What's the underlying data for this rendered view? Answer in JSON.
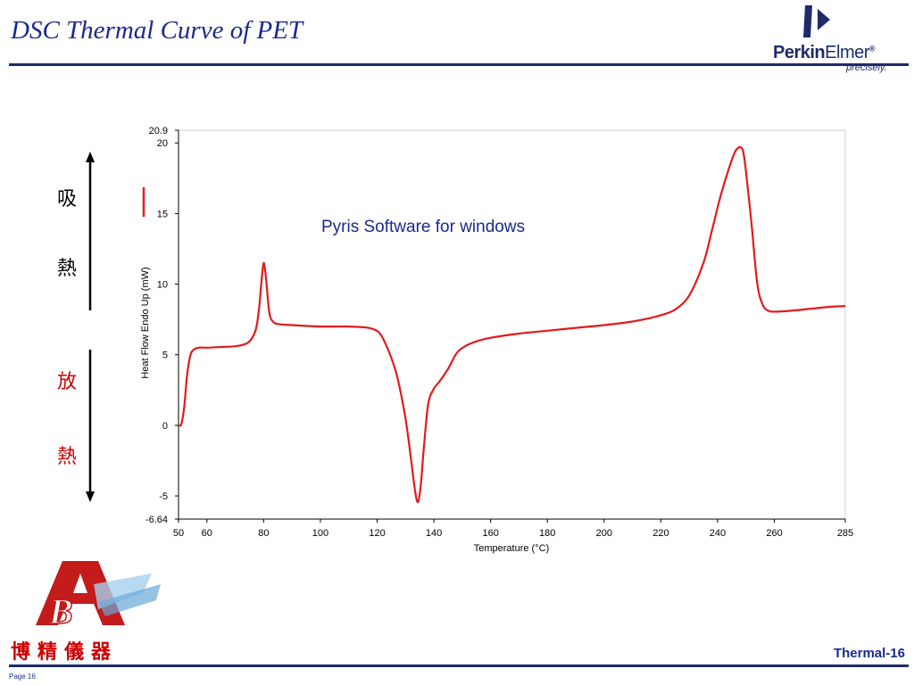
{
  "slide": {
    "title": "DSC Thermal Curve of PET",
    "slide_number": "Thermal-16",
    "page_label": "Page 16",
    "title_color": "#1a2a8c",
    "rule_color": "#1d2b6b"
  },
  "logos": {
    "perkinelmer": {
      "word_bold": "Perkin",
      "word_regular": "Elmer",
      "reg": "®",
      "tagline": "precisely."
    },
    "company_name": "博精儀器"
  },
  "side_labels": {
    "endothermic": [
      "吸",
      "熱"
    ],
    "exothermic": [
      "放",
      "熱"
    ],
    "endo_color": "#000000",
    "exo_color": "#cc0000"
  },
  "chart_data": {
    "type": "line",
    "annotation": "Pyris Software for windows",
    "xlabel": "Temperature (°C)",
    "ylabel": "Heat Flow Endo Up (mW)",
    "xlim": [
      50,
      285
    ],
    "ylim": [
      -6.64,
      20.9
    ],
    "xticks": [
      50,
      60,
      80,
      100,
      120,
      140,
      160,
      180,
      200,
      220,
      240,
      260,
      285
    ],
    "yticks": [
      -6.64,
      -5,
      0,
      5,
      10,
      15,
      20,
      20.9
    ],
    "grid": true,
    "line_color": "#e31a1c",
    "series": [
      {
        "x": [
          50,
          51,
          52,
          53,
          54,
          55,
          57,
          60,
          65,
          70,
          74,
          76,
          77.5,
          78.5,
          79.3,
          80,
          80.8,
          82,
          83.5,
          86,
          90,
          100,
          110,
          115,
          118,
          121,
          124,
          127,
          130,
          132,
          133.5,
          134.5,
          135.5,
          136.5,
          138,
          140,
          142,
          145,
          148,
          151,
          155,
          160,
          170,
          180,
          190,
          200,
          210,
          215,
          220,
          225,
          230,
          235,
          238,
          241,
          244,
          246,
          247,
          248,
          249,
          250,
          252,
          254,
          256,
          258,
          260,
          265,
          270,
          275,
          280,
          285
        ],
        "y": [
          0.0,
          0.1,
          1.3,
          3.5,
          4.8,
          5.3,
          5.5,
          5.5,
          5.55,
          5.6,
          5.8,
          6.2,
          7.0,
          8.5,
          10.3,
          11.5,
          10.5,
          8.0,
          7.3,
          7.15,
          7.1,
          7.0,
          7.0,
          6.95,
          6.85,
          6.5,
          5.3,
          3.5,
          0.5,
          -2.5,
          -4.8,
          -5.4,
          -4.0,
          -1.5,
          1.5,
          2.6,
          3.1,
          4.0,
          5.1,
          5.6,
          5.95,
          6.2,
          6.5,
          6.7,
          6.9,
          7.1,
          7.35,
          7.55,
          7.8,
          8.2,
          9.2,
          11.5,
          13.8,
          16.2,
          18.2,
          19.3,
          19.6,
          19.7,
          19.4,
          18.0,
          14.2,
          10.0,
          8.5,
          8.1,
          8.05,
          8.1,
          8.2,
          8.3,
          8.4,
          8.45
        ]
      }
    ]
  }
}
